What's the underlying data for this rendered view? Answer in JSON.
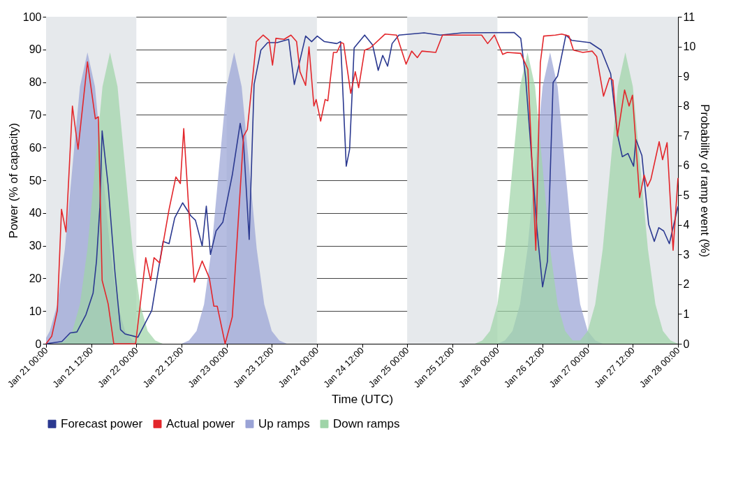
{
  "chart_data": {
    "type": "line",
    "xlabel": "Time (UTC)",
    "ylabel": "Power (% of capacity)",
    "y2label": "Probability of ramp event (%)",
    "xlim": [
      "--01-21T00:00",
      "--01-28T00:00"
    ],
    "xticks": [
      {
        "value": "--01-21T00:00",
        "label": "Jan 21 00:00"
      },
      {
        "value": "--01-21T12:00",
        "label": "Jan 21 12:00"
      },
      {
        "value": "--01-22T00:00",
        "label": "Jan 22 00:00"
      },
      {
        "value": "--01-22T12:00",
        "label": "Jan 22 12:00"
      },
      {
        "value": "--01-23T00:00",
        "label": "Jan 23 00:00"
      },
      {
        "value": "--01-23T12:00",
        "label": "Jan 23 12:00"
      },
      {
        "value": "--01-24T00:00",
        "label": "Jan 24 00:00"
      },
      {
        "value": "--01-24T12:00",
        "label": "Jan 24 12:00"
      },
      {
        "value": "--01-25T00:00",
        "label": "Jan 25 00:00"
      },
      {
        "value": "--01-25T12:00",
        "label": "Jan 25 12:00"
      },
      {
        "value": "--01-26T00:00",
        "label": "Jan 26 00:00"
      },
      {
        "value": "--01-26T12:00",
        "label": "Jan 26 12:00"
      },
      {
        "value": "--01-27T00:00",
        "label": "Jan 27 00:00"
      },
      {
        "value": "--01-27T12:00",
        "label": "Jan 27 12:00"
      },
      {
        "value": "--01-28T00:00",
        "label": "Jan 28 00:00"
      }
    ],
    "ylim": [
      0,
      100
    ],
    "yticks": [
      0,
      10,
      20,
      30,
      40,
      50,
      60,
      70,
      80,
      90,
      100
    ],
    "y2lim": [
      0,
      11
    ],
    "y2ticks": [
      0,
      1,
      2,
      3,
      4,
      5,
      6,
      7,
      8,
      9,
      10,
      11
    ],
    "grid": "y",
    "legend": "bottom",
    "line_style": "solid",
    "bands": [
      {
        "axis": "x",
        "from": "--01-21T00:00",
        "to": "--01-22T00:00",
        "color": "#e6e9ec"
      },
      {
        "axis": "x",
        "from": "--01-23T00:00",
        "to": "--01-24T00:00",
        "color": "#e6e9ec"
      },
      {
        "axis": "x",
        "from": "--01-25T00:00",
        "to": "--01-26T00:00",
        "color": "#e6e9ec"
      },
      {
        "axis": "x",
        "from": "--01-27T00:00",
        "to": "--01-28T00:00",
        "color": "#e6e9ec"
      }
    ],
    "series": [
      {
        "name": "Forecast power",
        "color": "#2b3990",
        "x": [
          "--01-21T00:00",
          "--01-21T04:12",
          "--01-21T06:24",
          "--01-21T08:12",
          "--01-21T10:36",
          "--01-21T12:30",
          "--01-21T13:24",
          "--01-21T14:18",
          "--01-21T14:54",
          "--01-21T16:30",
          "--01-21T18:18",
          "--01-21T19:48",
          "--01-21T21:00",
          "--01-22T00:24",
          "--01-22T04:06",
          "--01-22T07:06",
          "--01-22T08:42",
          "--01-22T10:12",
          "--01-22T12:18",
          "--01-22T14:30",
          "--01-22T15:42",
          "--01-22T17:30",
          "--01-22T18:36",
          "--01-22T19:42",
          "--01-22T21:12",
          "--01-22T23:00",
          "--01-23T01:30",
          "--01-23T03:36",
          "--01-23T04:30",
          "--01-23T06:00",
          "--01-23T07:18",
          "--01-23T09:06",
          "--01-23T10:54",
          "--01-23T13:24",
          "--01-23T16:30",
          "--01-23T18:00",
          "--01-23T21:00",
          "--01-23T22:36",
          "--01-24T00:06",
          "--01-24T02:00",
          "--01-24T05:18",
          "--01-24T06:18",
          "--01-24T07:48",
          "--01-24T08:42",
          "--01-24T09:54",
          "--01-24T12:42",
          "--01-24T14:48",
          "--01-24T16:18",
          "--01-24T17:30",
          "--01-24T18:48",
          "--01-24T20:00",
          "--01-24T21:48",
          "--01-25T04:30",
          "--01-25T08:48",
          "--01-25T14:36",
          "--01-26T04:24",
          "--01-26T06:12",
          "--01-26T07:30",
          "--01-26T10:30",
          "--01-26T12:00",
          "--01-26T13:18",
          "--01-26T14:48",
          "--01-26T16:00",
          "--01-26T18:12",
          "--01-26T19:42",
          "--01-27T00:36",
          "--01-27T03:36",
          "--01-27T06:06",
          "--01-27T07:54",
          "--01-27T09:12",
          "--01-27T10:42",
          "--01-27T12:12",
          "--01-27T12:48",
          "--01-27T14:24",
          "--01-27T16:12",
          "--01-27T17:42",
          "--01-27T18:54",
          "--01-27T20:12",
          "--01-27T21:42",
          "--01-28T00:00"
        ],
        "values": [
          0,
          0.7,
          3.3,
          3.6,
          8.9,
          15.5,
          25.3,
          41.8,
          65.1,
          48.4,
          22,
          4.3,
          3,
          2,
          10.2,
          31.3,
          30.6,
          38.5,
          43.1,
          39.1,
          37.8,
          29.9,
          42.1,
          27.3,
          34.5,
          37.2,
          51.6,
          67.4,
          61.5,
          31.9,
          79.3,
          89.8,
          92.1,
          92.1,
          93.1,
          79.3,
          94.1,
          92.4,
          94.1,
          92.4,
          91.8,
          92.4,
          54.3,
          59.5,
          90.5,
          94.4,
          91.4,
          83.6,
          88.2,
          84.9,
          91.8,
          94.4,
          95.1,
          94.4,
          95.1,
          95.2,
          93.4,
          81.3,
          35.2,
          17.4,
          25.3,
          79.9,
          81.9,
          94.4,
          92.8,
          92.1,
          89.8,
          82.6,
          64.1,
          57.2,
          58.2,
          54.3,
          62.5,
          57.6,
          36.5,
          31.3,
          35.5,
          34.5,
          30.6,
          42
        ]
      },
      {
        "name": "Actual power",
        "color": "#e3262b",
        "x": [
          "--01-21T00:00",
          "--01-21T01:30",
          "--01-21T03:00",
          "--01-21T04:06",
          "--01-21T05:18",
          "--01-21T07:00",
          "--01-21T08:30",
          "--01-21T11:00",
          "--01-21T13:06",
          "--01-21T13:54",
          "--01-21T14:54",
          "--01-21T16:30",
          "--01-21T18:00",
          "--01-21T23:48",
          "--01-22T02:30",
          "--01-22T03:48",
          "--01-22T04:42",
          "--01-22T06:12",
          "--01-22T08:42",
          "--01-22T10:30",
          "--01-22T11:42",
          "--01-22T12:36",
          "--01-22T13:54",
          "--01-22T15:24",
          "--01-22T17:30",
          "--01-22T19:24",
          "--01-22T20:36",
          "--01-22T21:30",
          "--01-22T23:36",
          "--01-23T01:30",
          "--01-23T04:30",
          "--01-23T05:30",
          "--01-23T07:54",
          "--01-23T09:42",
          "--01-23T11:18",
          "--01-23T12:12",
          "--01-23T13:06",
          "--01-23T15:18",
          "--01-23T17:06",
          "--01-23T18:36",
          "--01-23T19:30",
          "--01-23T21:00",
          "--01-23T21:54",
          "--01-23T23:12",
          "--01-23T23:48",
          "--01-24T01:00",
          "--01-24T02:12",
          "--01-24T02:54",
          "--01-24T04:24",
          "--01-24T05:18",
          "--01-24T06:30",
          "--01-24T07:06",
          "--01-24T09:00",
          "--01-24T10:12",
          "--01-24T11:06",
          "--01-24T12:42",
          "--01-24T14:12",
          "--01-24T18:06",
          "--01-24T21:12",
          "--01-24T23:42",
          "--01-25T01:12",
          "--01-25T02:42",
          "--01-25T03:54",
          "--01-25T07:36",
          "--01-25T09:24",
          "--01-25T14:42",
          "--01-25T19:48",
          "--01-25T21:24",
          "--01-25T23:12",
          "--01-26T01:24",
          "--01-26T02:36",
          "--01-26T06:12",
          "--01-26T08:06",
          "--01-26T10:12",
          "--01-26T11:24",
          "--01-26T12:18",
          "--01-26T15:24",
          "--01-26T17:06",
          "--01-26T19:00",
          "--01-26T20:12",
          "--01-26T22:42",
          "--01-27T01:12",
          "--01-27T02:24",
          "--01-27T04:12",
          "--01-27T05:48",
          "--01-27T06:42",
          "--01-27T07:54",
          "--01-27T09:48",
          "--01-27T11:00",
          "--01-27T11:54",
          "--01-27T13:48",
          "--01-27T15:00",
          "--01-27T15:54",
          "--01-27T16:48",
          "--01-27T19:00",
          "--01-27T19:54",
          "--01-27T21:06",
          "--01-27T22:42",
          "--01-28T00:00"
        ],
        "values": [
          0,
          2.3,
          10.2,
          41.1,
          34.2,
          72.7,
          59.5,
          86.2,
          68.8,
          69.4,
          19.4,
          12.2,
          0,
          0,
          26.3,
          19.4,
          26.3,
          24.7,
          41.1,
          51,
          49,
          65.8,
          41.8,
          18.8,
          25.3,
          20.1,
          11.5,
          11.5,
          0,
          8.2,
          63.5,
          65.5,
          92.4,
          94.4,
          92.8,
          85.2,
          93.4,
          93.1,
          94.4,
          92.4,
          83.2,
          79,
          90.8,
          72.7,
          74.7,
          68.1,
          74.7,
          74.3,
          89.1,
          89.1,
          92.1,
          91.8,
          76.6,
          83.2,
          78.3,
          89.8,
          90.5,
          94.7,
          94.4,
          85.5,
          89.5,
          87.5,
          89.5,
          89.1,
          94.4,
          94.4,
          94.4,
          91.8,
          94.4,
          88.5,
          89.1,
          88.8,
          83.9,
          28.6,
          85.9,
          94.1,
          94.4,
          94.7,
          94.1,
          89.8,
          89.1,
          89.5,
          87.8,
          75.7,
          81.3,
          80.6,
          63.5,
          77.6,
          72.7,
          76,
          44.7,
          51.6,
          48.1,
          50.3,
          61.8,
          56.3,
          61.5,
          28.6,
          50.7
        ]
      },
      {
        "name": "Up ramps",
        "type": "area",
        "axis": "y2",
        "color": "#9aa3d6",
        "x": [
          "--01-21T00:00",
          "--01-21T01:00",
          "--01-21T03:00",
          "--01-21T05:00",
          "--01-21T07:00",
          "--01-21T09:00",
          "--01-21T11:00",
          "--01-21T13:00",
          "--01-21T15:00",
          "--01-21T17:00",
          "--01-21T19:00",
          "--01-21T21:00",
          "--01-21T23:00",
          "--01-22T01:00",
          "--01-22T12:00",
          "--01-22T14:00",
          "--01-22T16:00",
          "--01-22T18:00",
          "--01-22T20:00",
          "--01-22T22:00",
          "--01-23T00:00",
          "--01-23T02:00",
          "--01-23T04:00",
          "--01-23T06:00",
          "--01-23T08:00",
          "--01-23T10:00",
          "--01-23T12:00",
          "--01-23T14:00",
          "--01-23T16:00",
          "--01-26T00:00",
          "--01-26T02:00",
          "--01-26T04:00",
          "--01-26T06:00",
          "--01-26T08:00",
          "--01-26T10:00",
          "--01-26T12:00",
          "--01-26T14:00",
          "--01-26T16:00",
          "--01-26T18:00",
          "--01-26T20:00",
          "--01-26T22:00",
          "--01-27T00:00",
          "--01-27T02:00",
          "--01-27T04:00"
        ],
        "values": [
          0.2,
          0.43,
          1.33,
          3.19,
          5.94,
          8.65,
          9.8,
          8.65,
          5.94,
          3.19,
          1.33,
          0.43,
          0.11,
          0,
          0,
          0.11,
          0.43,
          1.33,
          3.19,
          5.94,
          8.65,
          9.8,
          8.65,
          5.94,
          3.19,
          1.33,
          0.43,
          0.11,
          0,
          0,
          0.11,
          0.43,
          1.33,
          3.19,
          5.94,
          8.65,
          9.8,
          8.65,
          5.94,
          3.19,
          1.33,
          0.43,
          0.11,
          0
        ]
      },
      {
        "name": "Down ramps",
        "type": "area",
        "axis": "y2",
        "color": "#9fd4a8",
        "x": [
          "--01-21T03:00",
          "--01-21T05:00",
          "--01-21T07:00",
          "--01-21T09:00",
          "--01-21T11:00",
          "--01-21T13:00",
          "--01-21T15:00",
          "--01-21T17:00",
          "--01-21T19:00",
          "--01-21T21:00",
          "--01-21T23:00",
          "--01-22T01:00",
          "--01-22T03:00",
          "--01-22T05:00",
          "--01-22T07:00",
          "--01-25T18:00",
          "--01-25T20:00",
          "--01-25T22:00",
          "--01-26T00:00",
          "--01-26T02:00",
          "--01-26T04:00",
          "--01-26T06:00",
          "--01-26T08:00",
          "--01-26T10:00",
          "--01-26T12:00",
          "--01-26T14:00",
          "--01-26T16:00",
          "--01-26T18:00",
          "--01-26T20:00",
          "--01-26T22:00",
          "--01-27T00:00",
          "--01-27T02:00",
          "--01-27T04:00",
          "--01-27T06:00",
          "--01-27T08:00",
          "--01-27T10:00",
          "--01-27T12:00",
          "--01-27T14:00",
          "--01-27T16:00",
          "--01-27T18:00",
          "--01-27T20:00",
          "--01-27T22:00",
          "--01-28T00:00"
        ],
        "values": [
          0,
          0.11,
          0.43,
          1.33,
          3.19,
          5.94,
          8.65,
          9.8,
          8.65,
          5.94,
          3.19,
          1.33,
          0.43,
          0.11,
          0,
          0,
          0.11,
          0.43,
          1.33,
          3.19,
          5.94,
          8.65,
          9.8,
          8.65,
          5.94,
          3.19,
          1.33,
          0.43,
          0.11,
          0.11,
          0.43,
          1.33,
          3.19,
          5.94,
          8.65,
          9.8,
          8.65,
          5.94,
          3.19,
          1.33,
          0.43,
          0.11,
          0
        ]
      }
    ]
  }
}
